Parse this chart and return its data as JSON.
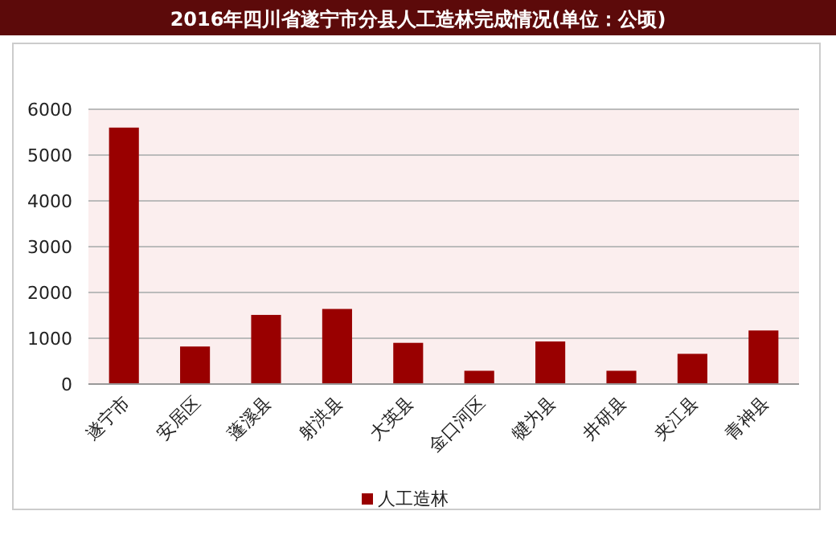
{
  "chart_data": {
    "type": "bar",
    "title": "2016年四川省遂宁市分县人工造林完成情况(单位：公顷)",
    "categories": [
      "遂宁市",
      "安居区",
      "蓬溪县",
      "射洪县",
      "大英县",
      "金口河区",
      "犍为县",
      "井研县",
      "夹江县",
      "青神县"
    ],
    "series": [
      {
        "name": "人工造林",
        "color": "#990000",
        "values": [
          5600,
          820,
          1510,
          1640,
          900,
          290,
          930,
          290,
          660,
          1170
        ]
      }
    ],
    "ylim": [
      0,
      6000
    ],
    "yticks": [
      0,
      1000,
      2000,
      3000,
      4000,
      5000,
      6000
    ],
    "grid": "y",
    "legend": "bottom"
  }
}
